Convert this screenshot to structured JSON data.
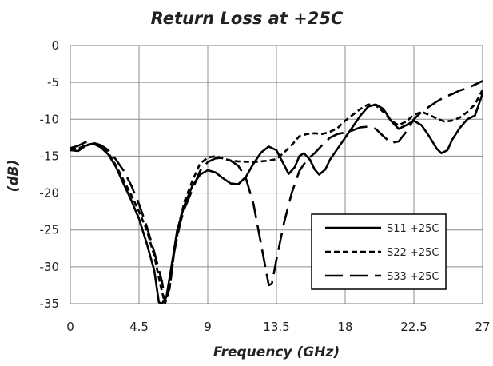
{
  "chart_data": {
    "type": "line",
    "title": "Return Loss at +25C",
    "xlabel": "Frequency (GHz)",
    "ylabel": "(dB)",
    "xlim": [
      0,
      27
    ],
    "ylim": [
      -35,
      0
    ],
    "xticks": [
      0,
      4.5,
      9,
      13.5,
      18,
      22.5,
      27
    ],
    "xtick_labels": [
      "0",
      "4.5",
      "9",
      "13.5",
      "18",
      "22.5",
      "27"
    ],
    "yticks": [
      0,
      -5,
      -10,
      -15,
      -20,
      -25,
      -30,
      -35
    ],
    "ytick_labels": [
      "0",
      "-5",
      "-10",
      "-15",
      "-20",
      "-25",
      "-30",
      "-35"
    ],
    "grid": true,
    "legend_position": "bottom-right",
    "line_color": "#000000",
    "series": [
      {
        "name": "S11 +25C",
        "dash": "solid",
        "points": [
          [
            0,
            -14.2
          ],
          [
            0.5,
            -14.3
          ],
          [
            1,
            -13.6
          ],
          [
            1.5,
            -13.3
          ],
          [
            2,
            -13.8
          ],
          [
            2.5,
            -14.8
          ],
          [
            3,
            -16.5
          ],
          [
            3.5,
            -18.8
          ],
          [
            4,
            -21
          ],
          [
            4.5,
            -23.5
          ],
          [
            5,
            -26.8
          ],
          [
            5.5,
            -30.5
          ],
          [
            5.8,
            -34.8
          ],
          [
            6,
            -35
          ],
          [
            6.3,
            -34
          ],
          [
            6.7,
            -29
          ],
          [
            7,
            -25
          ],
          [
            7.5,
            -21.5
          ],
          [
            8,
            -19
          ],
          [
            8.5,
            -17.5
          ],
          [
            9,
            -16.9
          ],
          [
            9.5,
            -17.2
          ],
          [
            10,
            -18
          ],
          [
            10.5,
            -18.7
          ],
          [
            11,
            -18.8
          ],
          [
            11.5,
            -17.8
          ],
          [
            12,
            -16
          ],
          [
            12.5,
            -14.5
          ],
          [
            13,
            -13.7
          ],
          [
            13.5,
            -14.2
          ],
          [
            14,
            -16.2
          ],
          [
            14.3,
            -17.4
          ],
          [
            14.7,
            -16.5
          ],
          [
            15,
            -15
          ],
          [
            15.3,
            -14.6
          ],
          [
            15.7,
            -15.5
          ],
          [
            16,
            -16.8
          ],
          [
            16.3,
            -17.5
          ],
          [
            16.7,
            -16.8
          ],
          [
            17,
            -15.5
          ],
          [
            17.5,
            -14
          ],
          [
            18,
            -12.5
          ],
          [
            18.5,
            -11
          ],
          [
            19,
            -9.5
          ],
          [
            19.5,
            -8.3
          ],
          [
            20,
            -8
          ],
          [
            20.5,
            -8.6
          ],
          [
            21,
            -10.2
          ],
          [
            21.5,
            -11.3
          ],
          [
            22,
            -10.8
          ],
          [
            22.5,
            -10.2
          ],
          [
            23,
            -10.8
          ],
          [
            23.5,
            -12.3
          ],
          [
            24,
            -14
          ],
          [
            24.3,
            -14.6
          ],
          [
            24.7,
            -14.2
          ],
          [
            25,
            -12.8
          ],
          [
            25.5,
            -11.2
          ],
          [
            26,
            -10
          ],
          [
            26.5,
            -9.5
          ],
          [
            27,
            -6.5
          ]
        ]
      },
      {
        "name": "S22 +25C",
        "dash": "short-dash",
        "points": [
          [
            0,
            -14
          ],
          [
            0.5,
            -14
          ],
          [
            1,
            -13.5
          ],
          [
            1.5,
            -13.3
          ],
          [
            2,
            -13.7
          ],
          [
            2.5,
            -14.6
          ],
          [
            3,
            -16.3
          ],
          [
            3.5,
            -18.3
          ],
          [
            4,
            -20.3
          ],
          [
            4.5,
            -22.5
          ],
          [
            5,
            -25
          ],
          [
            5.5,
            -28.5
          ],
          [
            5.9,
            -32.5
          ],
          [
            6.2,
            -35
          ],
          [
            6.5,
            -33
          ],
          [
            6.8,
            -28
          ],
          [
            7.2,
            -23.5
          ],
          [
            7.5,
            -21
          ],
          [
            8,
            -18.3
          ],
          [
            8.5,
            -16
          ],
          [
            9,
            -15.2
          ],
          [
            9.5,
            -15
          ],
          [
            10,
            -15.3
          ],
          [
            10.5,
            -15.6
          ],
          [
            11,
            -15.7
          ],
          [
            12,
            -15.8
          ],
          [
            13,
            -15.6
          ],
          [
            13.5,
            -15.4
          ],
          [
            14,
            -14.5
          ],
          [
            14.5,
            -13.5
          ],
          [
            15,
            -12.3
          ],
          [
            15.5,
            -12
          ],
          [
            16,
            -11.9
          ],
          [
            16.5,
            -12
          ],
          [
            17,
            -11.7
          ],
          [
            17.5,
            -11.2
          ],
          [
            18,
            -10.2
          ],
          [
            18.5,
            -9.4
          ],
          [
            19,
            -8.6
          ],
          [
            19.5,
            -8
          ],
          [
            20,
            -8.1
          ],
          [
            20.5,
            -9
          ],
          [
            21,
            -10.2
          ],
          [
            21.5,
            -10.8
          ],
          [
            22,
            -10.3
          ],
          [
            22.5,
            -9.4
          ],
          [
            23,
            -9
          ],
          [
            23.5,
            -9.4
          ],
          [
            24,
            -9.9
          ],
          [
            24.5,
            -10.3
          ],
          [
            25,
            -10.2
          ],
          [
            25.5,
            -9.8
          ],
          [
            26,
            -9
          ],
          [
            26.5,
            -8
          ],
          [
            27,
            -6
          ]
        ]
      },
      {
        "name": "S33 +25C",
        "dash": "long-dash",
        "points": [
          [
            0,
            -13.9
          ],
          [
            0.5,
            -13.6
          ],
          [
            1,
            -13.1
          ],
          [
            1.5,
            -13.2
          ],
          [
            2,
            -13.5
          ],
          [
            2.5,
            -14.2
          ],
          [
            3,
            -15.5
          ],
          [
            3.5,
            -17
          ],
          [
            4,
            -19
          ],
          [
            4.5,
            -21.5
          ],
          [
            5,
            -24.5
          ],
          [
            5.5,
            -28
          ],
          [
            6,
            -32
          ],
          [
            6.2,
            -34.5
          ],
          [
            6.5,
            -33
          ],
          [
            6.8,
            -28
          ],
          [
            7.2,
            -24
          ],
          [
            7.5,
            -22
          ],
          [
            8,
            -19.5
          ],
          [
            8.5,
            -17
          ],
          [
            9,
            -15.8
          ],
          [
            9.5,
            -15.3
          ],
          [
            10,
            -15.2
          ],
          [
            10.5,
            -15.6
          ],
          [
            11,
            -16.3
          ],
          [
            11.5,
            -18
          ],
          [
            12,
            -21.5
          ],
          [
            12.5,
            -27
          ],
          [
            13,
            -32.5
          ],
          [
            13.2,
            -32.3
          ],
          [
            13.5,
            -29
          ],
          [
            14,
            -24
          ],
          [
            14.5,
            -20
          ],
          [
            15,
            -17
          ],
          [
            15.5,
            -15.5
          ],
          [
            16,
            -14.6
          ],
          [
            16.5,
            -13.5
          ],
          [
            17,
            -12.5
          ],
          [
            17.5,
            -12
          ],
          [
            18,
            -11.8
          ],
          [
            18.5,
            -11.5
          ],
          [
            19,
            -11.1
          ],
          [
            19.5,
            -11
          ],
          [
            20,
            -11.3
          ],
          [
            20.5,
            -12.3
          ],
          [
            21,
            -13.2
          ],
          [
            21.5,
            -13
          ],
          [
            22,
            -11.7
          ],
          [
            22.5,
            -10
          ],
          [
            23,
            -9
          ],
          [
            23.5,
            -8.3
          ],
          [
            24,
            -7.6
          ],
          [
            24.5,
            -7
          ],
          [
            25,
            -6.6
          ],
          [
            25.5,
            -6.1
          ],
          [
            26,
            -5.8
          ],
          [
            26.5,
            -5.3
          ],
          [
            27,
            -4.8
          ]
        ]
      }
    ]
  }
}
